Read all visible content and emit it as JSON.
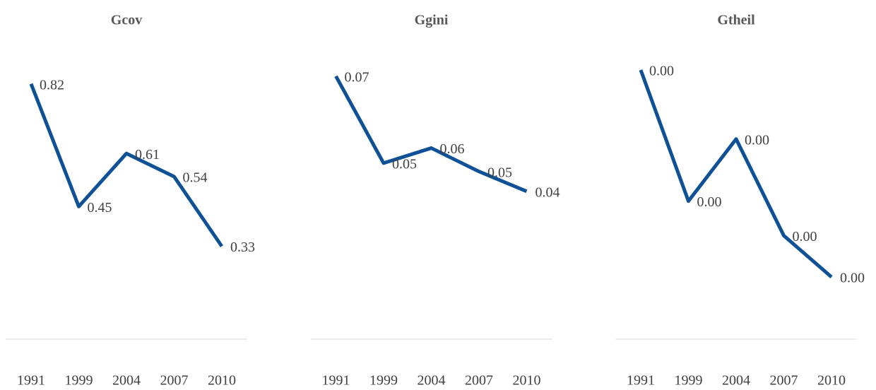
{
  "chart_data": [
    {
      "type": "line",
      "title": "Gcov",
      "categories": [
        "1991",
        "1999",
        "2004",
        "2007",
        "2010"
      ],
      "series": [
        {
          "name": "Gcov",
          "color": "#0e5196",
          "values": [
            0.82,
            0.45,
            0.61,
            0.54,
            0.33
          ]
        }
      ],
      "ylim": [
        0.05,
        0.945
      ]
    },
    {
      "type": "line",
      "title": "Ggini",
      "categories": [
        "1991",
        "1999",
        "2004",
        "2007",
        "2010"
      ],
      "series": [
        {
          "name": "Ggini",
          "color": "#0e5196",
          "values": [
            0.0735,
            0.0516,
            0.0554,
            0.0495,
            0.0445
          ],
          "value_labels": [
            "0.07",
            "0.05",
            "0.06",
            "0.05",
            "0.04"
          ]
        }
      ],
      "ylim": [
        0.0073,
        0.082
      ]
    },
    {
      "type": "line",
      "title": "Gtheil",
      "categories": [
        "1991",
        "1999",
        "2004",
        "2007",
        "2010"
      ],
      "series": [
        {
          "name": "Gtheil",
          "color": "#0e5196",
          "values": [
            0.0045,
            0.0026,
            0.0035,
            0.0021,
            0.0015
          ],
          "value_labels": [
            "0.00",
            "0.00",
            "0.00",
            "0.00",
            "0.00"
          ]
        }
      ],
      "ylim": [
        0.0006,
        0.0049
      ]
    }
  ]
}
